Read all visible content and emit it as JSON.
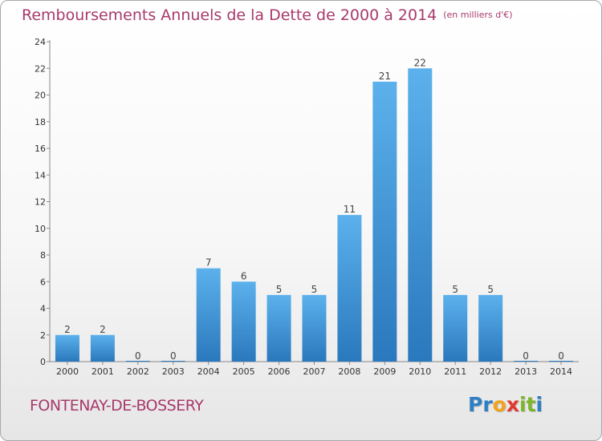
{
  "chart_data": {
    "type": "bar",
    "title": "Remboursements Annuels de la Dette de 2000 à 2014",
    "subtitle": "(en milliers d'€)",
    "categories": [
      "2000",
      "2001",
      "2002",
      "2003",
      "2004",
      "2005",
      "2006",
      "2007",
      "2008",
      "2009",
      "2010",
      "2011",
      "2012",
      "2013",
      "2014"
    ],
    "values": [
      2,
      2,
      0,
      0,
      7,
      6,
      5,
      5,
      11,
      21,
      22,
      5,
      5,
      0,
      0
    ],
    "ylim": [
      0,
      24
    ],
    "yticks": [
      0,
      2,
      4,
      6,
      8,
      10,
      12,
      14,
      16,
      18,
      20,
      22,
      24
    ],
    "grid": false,
    "bar_color": "#3a8fd6"
  },
  "footer": {
    "commune": "FONTENAY-DE-BOSSERY",
    "logo_letters": [
      "P",
      "r",
      "o",
      "x",
      "i",
      "t",
      "i"
    ],
    "logo_colors": [
      "#2e7fc4",
      "#2e7fc4",
      "#f2a31b",
      "#e23a2e",
      "#7db52b",
      "#7db52b",
      "#2e7fc4"
    ]
  }
}
